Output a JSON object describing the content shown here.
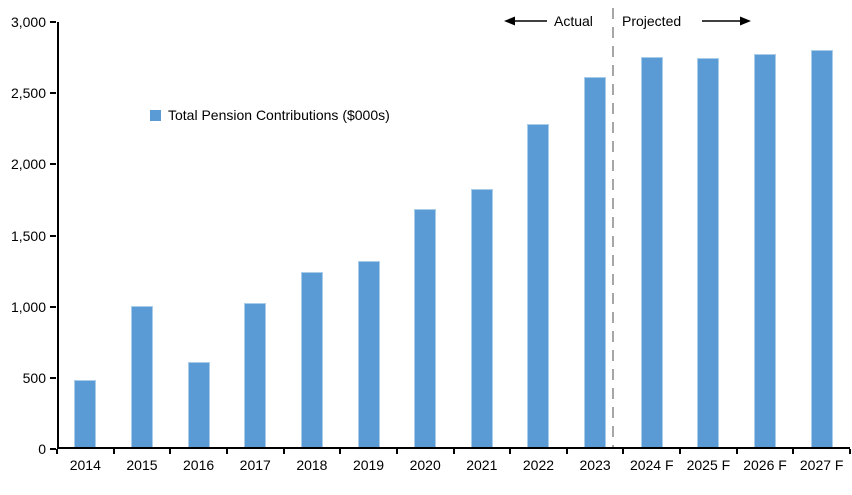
{
  "chart_data": {
    "type": "bar",
    "title": "",
    "legend": [
      "Total Pension Contributions ($000s)"
    ],
    "legend_position": "inside-upper-left",
    "categories": [
      "2014",
      "2015",
      "2016",
      "2017",
      "2018",
      "2019",
      "2020",
      "2021",
      "2022",
      "2023",
      "2024 F",
      "2025 F",
      "2026 F",
      "2027 F"
    ],
    "values": [
      470,
      990,
      600,
      1010,
      1230,
      1310,
      1670,
      1810,
      2270,
      2600,
      2740,
      2730,
      2760,
      2790
    ],
    "xlabel": "",
    "ylabel": "",
    "ylim": [
      0,
      3000
    ],
    "y_tick_step": 500,
    "y_tick_labels": [
      "0",
      "500",
      "1,000",
      "1,500",
      "2,000",
      "2,500",
      "3,000"
    ],
    "grid": false,
    "annotations": {
      "actual_label": "Actual",
      "projected_label": "Projected",
      "divider_between": [
        "2023",
        "2024 F"
      ]
    }
  },
  "colors": {
    "bar_fill": "#5B9BD5",
    "bar_border": "#A9CCE9",
    "axis": "#000000",
    "text": "#000000",
    "divider": "#A6A6A6",
    "background": "#FFFFFF"
  }
}
